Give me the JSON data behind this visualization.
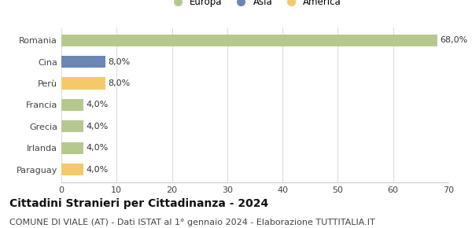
{
  "categories": [
    "Romania",
    "Cina",
    "Perù",
    "Francia",
    "Grecia",
    "Irlanda",
    "Paraguay"
  ],
  "values": [
    68.0,
    8.0,
    8.0,
    4.0,
    4.0,
    4.0,
    4.0
  ],
  "bar_colors": [
    "#b5c98e",
    "#6b85b5",
    "#f5c96a",
    "#b5c98e",
    "#b5c98e",
    "#b5c98e",
    "#f5c96a"
  ],
  "labels": [
    "68,0%",
    "8,0%",
    "8,0%",
    "4,0%",
    "4,0%",
    "4,0%",
    "4,0%"
  ],
  "xlim": [
    0,
    70
  ],
  "xticks": [
    0,
    10,
    20,
    30,
    40,
    50,
    60,
    70
  ],
  "title": "Cittadini Stranieri per Cittadinanza - 2024",
  "subtitle": "COMUNE DI VIALE (AT) - Dati ISTAT al 1° gennaio 2024 - Elaborazione TUTTITALIA.IT",
  "legend_labels": [
    "Europa",
    "Asia",
    "America"
  ],
  "legend_colors": [
    "#b5c98e",
    "#6b85b5",
    "#f5c96a"
  ],
  "bg_color": "#ffffff",
  "grid_color": "#dddddd",
  "bar_height": 0.55,
  "title_fontsize": 10,
  "subtitle_fontsize": 8,
  "label_fontsize": 8,
  "tick_fontsize": 8,
  "legend_fontsize": 8.5
}
